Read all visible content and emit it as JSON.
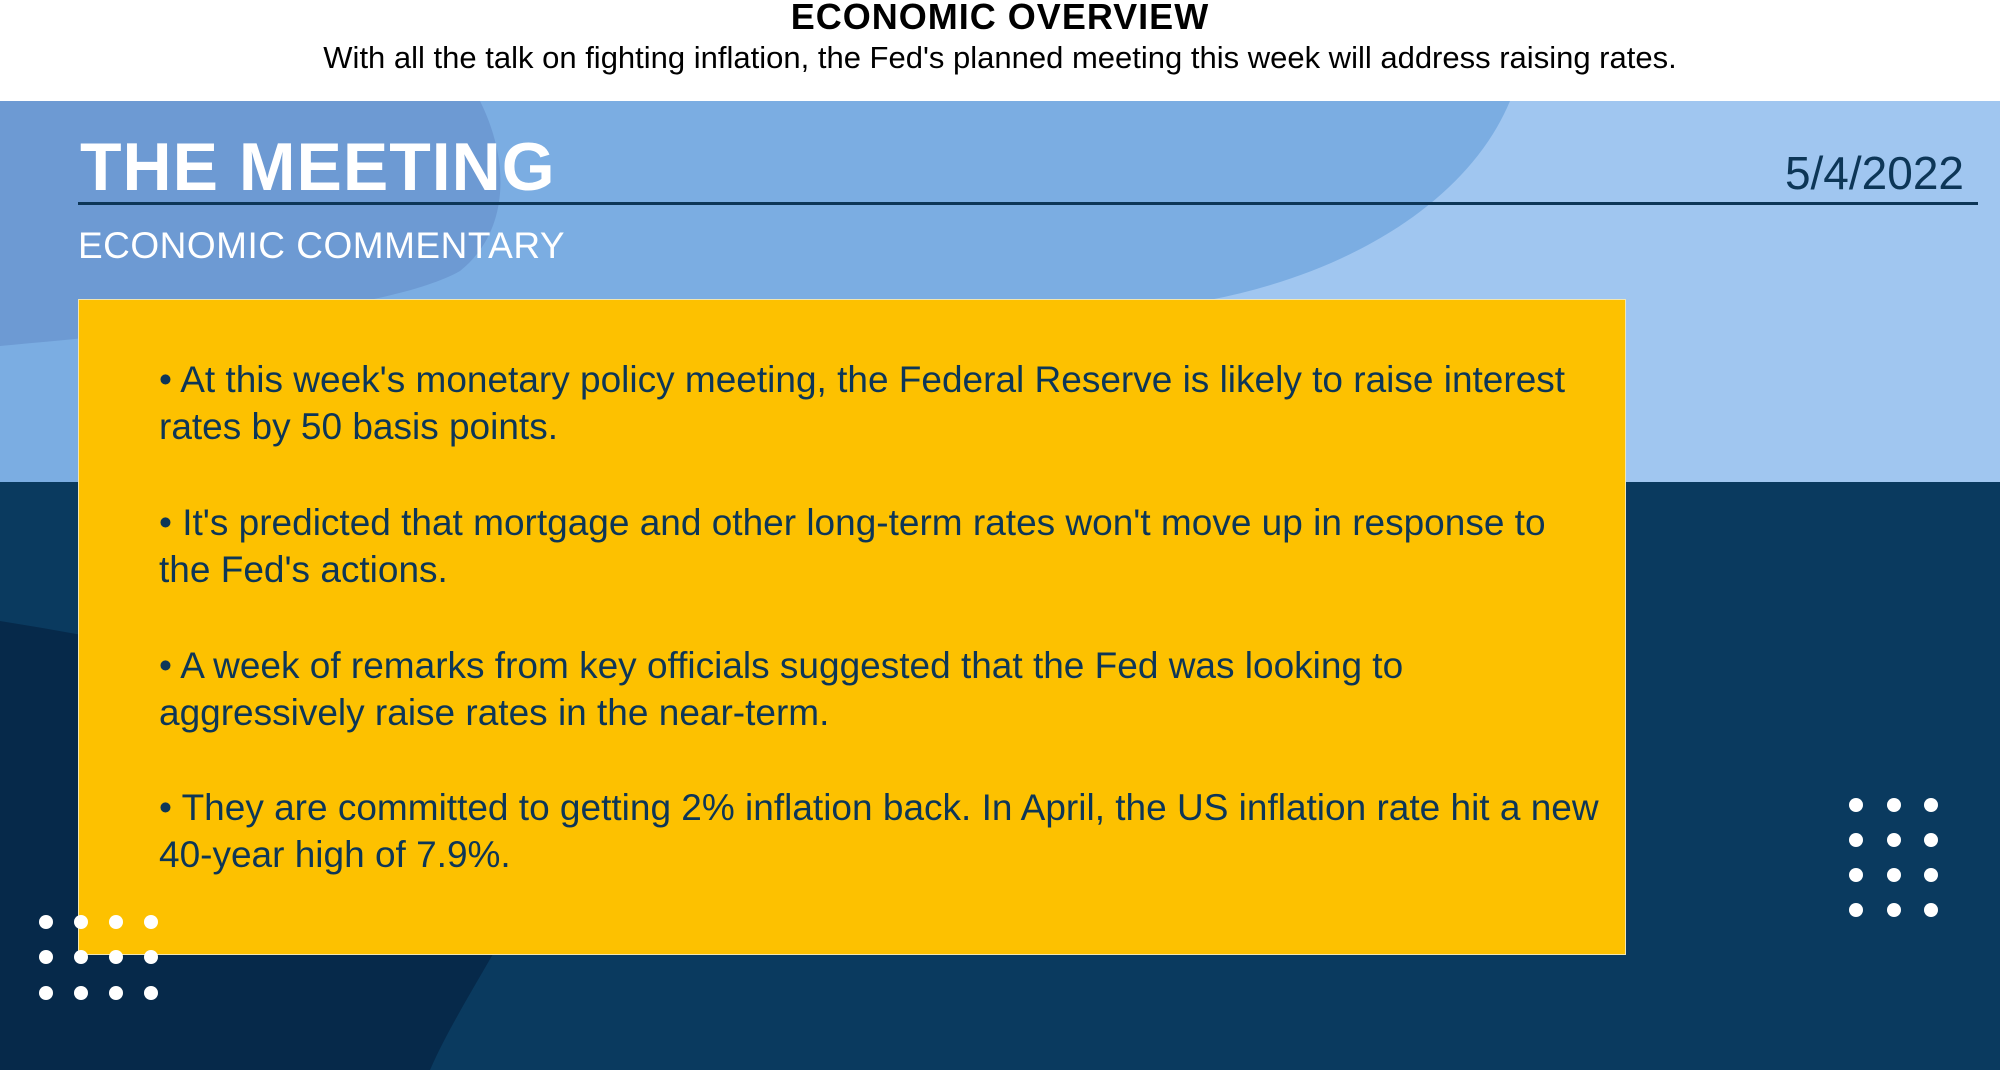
{
  "header": {
    "title": "ECONOMIC OVERVIEW",
    "subtitle": "With all the talk on fighting inflation, the Fed's planned meeting this week will address raising rates."
  },
  "banner": {
    "title": "THE MEETING",
    "date": "5/4/2022",
    "section_label": "ECONOMIC COMMENTARY"
  },
  "card": {
    "bullets": [
      "• At this week's monetary policy meeting, the Federal Reserve is likely to raise interest rates by 50 basis points.",
      "• It's predicted that mortgage and other long-term rates won't move up in response to the Fed's actions.",
      "• A week of remarks from key officials suggested that the Fed was looking to aggressively raise rates in the near-term.",
      "• They are committed to getting 2% inflation back. In April, the US inflation rate hit a new 40-year high of 7.9%."
    ]
  },
  "colors": {
    "navy": "#0a3a5f",
    "light_blue": "#a0c6f0",
    "mid_blue": "#7badE2",
    "yellow": "#fdc100",
    "text_dark": "#0d3657"
  }
}
